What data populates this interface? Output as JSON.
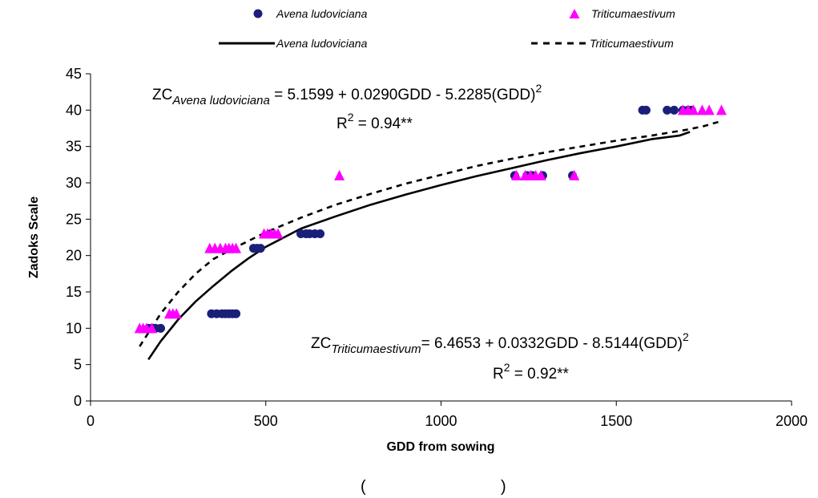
{
  "chart_data": {
    "type": "scatter",
    "title": "",
    "xlabel": "GDD from sowing",
    "ylabel": "Zadoks Scale",
    "xlim": [
      0,
      2000
    ],
    "ylim": [
      0,
      45
    ],
    "x_ticks": [
      "0",
      "500",
      "1000",
      "1500",
      "2000"
    ],
    "y_ticks": [
      "0",
      "5",
      "10",
      "15",
      "20",
      "25",
      "30",
      "35",
      "40",
      "45"
    ],
    "grid": false,
    "legend_position": "top",
    "caption_open": "(",
    "caption_close": ")",
    "series": [
      {
        "name": "Avena ludoviciana",
        "kind": "points",
        "marker": "circle",
        "color": "#1a1f7a",
        "points": [
          [
            165,
            10
          ],
          [
            175,
            10
          ],
          [
            185,
            10
          ],
          [
            200,
            10
          ],
          [
            345,
            12
          ],
          [
            360,
            12
          ],
          [
            375,
            12
          ],
          [
            385,
            12
          ],
          [
            395,
            12
          ],
          [
            405,
            12
          ],
          [
            415,
            12
          ],
          [
            465,
            21
          ],
          [
            475,
            21
          ],
          [
            485,
            21
          ],
          [
            600,
            23
          ],
          [
            615,
            23
          ],
          [
            625,
            23
          ],
          [
            640,
            23
          ],
          [
            655,
            23
          ],
          [
            1210,
            31
          ],
          [
            1245,
            31
          ],
          [
            1260,
            31
          ],
          [
            1290,
            31
          ],
          [
            1375,
            31
          ],
          [
            1575,
            40
          ],
          [
            1585,
            40
          ],
          [
            1645,
            40
          ],
          [
            1665,
            40
          ],
          [
            1690,
            40
          ],
          [
            1705,
            40
          ],
          [
            1715,
            40
          ]
        ]
      },
      {
        "name": "Triticumaestivum",
        "kind": "points",
        "marker": "triangle",
        "color": "#ff00ff",
        "points": [
          [
            140,
            10
          ],
          [
            150,
            10
          ],
          [
            160,
            10
          ],
          [
            175,
            10
          ],
          [
            225,
            12
          ],
          [
            235,
            12
          ],
          [
            245,
            12
          ],
          [
            340,
            21
          ],
          [
            355,
            21
          ],
          [
            370,
            21
          ],
          [
            385,
            21
          ],
          [
            395,
            21
          ],
          [
            405,
            21
          ],
          [
            415,
            21
          ],
          [
            495,
            23
          ],
          [
            505,
            23
          ],
          [
            515,
            23
          ],
          [
            525,
            23
          ],
          [
            535,
            23
          ],
          [
            710,
            31
          ],
          [
            1215,
            31
          ],
          [
            1240,
            31
          ],
          [
            1255,
            31
          ],
          [
            1270,
            31
          ],
          [
            1285,
            31
          ],
          [
            1380,
            31
          ],
          [
            1690,
            40
          ],
          [
            1705,
            40
          ],
          [
            1720,
            40
          ],
          [
            1745,
            40
          ],
          [
            1765,
            40
          ],
          [
            1800,
            40
          ]
        ]
      },
      {
        "name": "Avena ludoviciana",
        "kind": "line",
        "style": "solid",
        "color": "#000000",
        "points": [
          [
            165,
            5.7
          ],
          [
            200,
            8.2
          ],
          [
            250,
            11.2
          ],
          [
            300,
            13.7
          ],
          [
            350,
            15.8
          ],
          [
            400,
            17.8
          ],
          [
            450,
            19.6
          ],
          [
            500,
            21.2
          ],
          [
            600,
            23.7
          ],
          [
            700,
            25.4
          ],
          [
            800,
            27.0
          ],
          [
            900,
            28.4
          ],
          [
            1000,
            29.7
          ],
          [
            1100,
            30.9
          ],
          [
            1200,
            32.0
          ],
          [
            1300,
            33.1
          ],
          [
            1400,
            34.1
          ],
          [
            1500,
            35.0
          ],
          [
            1600,
            36.0
          ],
          [
            1680,
            36.5
          ],
          [
            1710,
            37.0
          ]
        ]
      },
      {
        "name": "Triticumaestivum",
        "kind": "line",
        "style": "dashed",
        "color": "#000000",
        "points": [
          [
            140,
            7.5
          ],
          [
            200,
            12.0
          ],
          [
            250,
            15.0
          ],
          [
            300,
            17.5
          ],
          [
            350,
            19.5
          ],
          [
            400,
            20.8
          ],
          [
            500,
            23.2
          ],
          [
            600,
            25.2
          ],
          [
            700,
            27.0
          ],
          [
            800,
            28.5
          ],
          [
            900,
            29.9
          ],
          [
            1000,
            31.1
          ],
          [
            1100,
            32.3
          ],
          [
            1200,
            33.3
          ],
          [
            1300,
            34.2
          ],
          [
            1400,
            35.0
          ],
          [
            1500,
            35.8
          ],
          [
            1600,
            36.5
          ],
          [
            1700,
            37.3
          ],
          [
            1750,
            37.8
          ],
          [
            1800,
            38.5
          ]
        ]
      }
    ],
    "annotations": [
      {
        "id": "eq-avena",
        "prefix": "ZC",
        "subscript": "Avena ludoviciana",
        "equation": " = 5.1599 + 0.0290GDD - 5.2285(GDD)",
        "superscript": "2",
        "r2_label": "R",
        "r2_superscript": "2",
        "r2_value": " = 0.94**"
      },
      {
        "id": "eq-triticum",
        "prefix": "ZC",
        "subscript": "Triticumaestivum",
        "equation": "= 6.4653 + 0.0332GDD - 8.5144(GDD)",
        "superscript": "2",
        "r2_label": "R",
        "r2_superscript": "2",
        "r2_value": " = 0.92**"
      }
    ]
  }
}
